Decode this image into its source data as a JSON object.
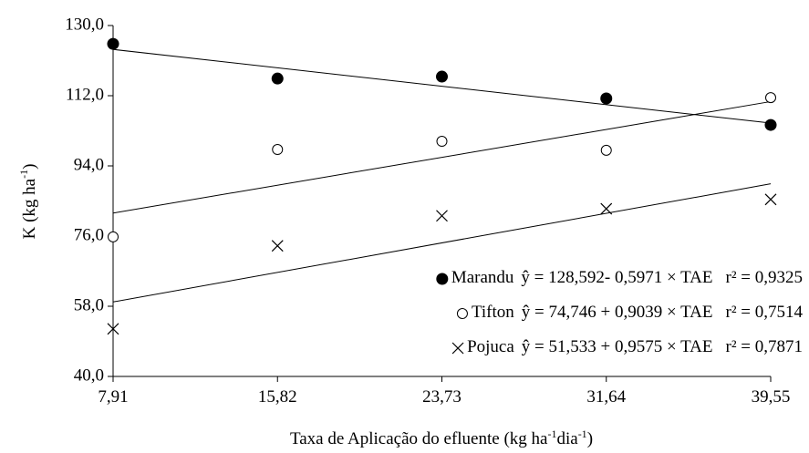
{
  "chart_data": {
    "type": "scatter",
    "ylabel": [
      "K  (kg ha",
      "-1",
      ")"
    ],
    "xlabel": [
      "Taxa de Aplicação do efluente  (kg ha",
      "-1",
      "dia",
      "-1",
      ")"
    ],
    "xlim": [
      7.91,
      39.55
    ],
    "xticks": [
      {
        "value": 7.91,
        "label": "7,91"
      },
      {
        "value": 15.82,
        "label": "15,82"
      },
      {
        "value": 23.73,
        "label": "23,73"
      },
      {
        "value": 31.64,
        "label": "31,64"
      },
      {
        "value": 39.55,
        "label": "39,55"
      }
    ],
    "ylim": [
      40,
      130
    ],
    "yticks": [
      {
        "value": 40,
        "label": "40,0"
      },
      {
        "value": 58,
        "label": "58,0"
      },
      {
        "value": 76,
        "label": "76,0"
      },
      {
        "value": 94,
        "label": "94,0"
      },
      {
        "value": 112,
        "label": "112,0"
      },
      {
        "value": 130,
        "label": "130,0"
      }
    ],
    "grid": false,
    "legend": "lower right",
    "x": [
      7.91,
      15.82,
      23.73,
      31.64,
      39.55
    ],
    "series": [
      {
        "name": "Marandu",
        "marker": "filled-circle",
        "color": "#000000",
        "values": [
          125.3,
          116.4,
          116.9,
          111.3,
          104.5
        ],
        "equation": "ŷ = 128,592- 0,5971 × TAE",
        "r2": "r² = 0,9325",
        "fit": {
          "intercept": 128.592,
          "slope": -0.5971
        }
      },
      {
        "name": "Tifton",
        "marker": "open-circle",
        "color": "#000000",
        "values": [
          75.8,
          98.2,
          100.3,
          98.0,
          111.5
        ],
        "equation": "ŷ = 74,746 + 0,9039 × TAE",
        "r2": "r² = 0,7514",
        "fit": {
          "intercept": 74.746,
          "slope": 0.9039
        }
      },
      {
        "name": "Pojuca",
        "marker": "cross",
        "color": "#000000",
        "values": [
          52.2,
          73.5,
          81.2,
          83.0,
          85.4
        ],
        "equation": "ŷ = 51,533 + 0,9575 × TAE",
        "r2": "r² = 0,7871",
        "fit": {
          "intercept": 51.533,
          "slope": 0.9575
        }
      }
    ]
  }
}
